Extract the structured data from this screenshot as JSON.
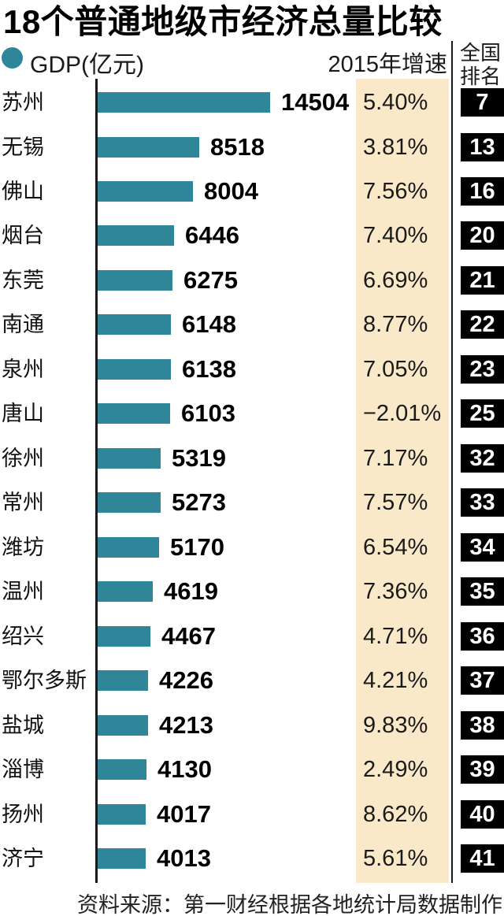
{
  "title": "18个普通地级市经济总量比较",
  "legend": {
    "gdp_label": "GDP(亿元)",
    "growth_header": "2015年增速",
    "rank_header_line1": "全国",
    "rank_header_line2": "排名"
  },
  "footer": {
    "source": "资料来源：第一财经根据各地统计局数据制作"
  },
  "colors": {
    "bar": "#2F8698",
    "highlight": "#FAE9C9",
    "badge_bg": "#000000",
    "badge_text": "#FFFFFF",
    "axis": "#1a1a1a"
  },
  "chart_data": {
    "type": "bar",
    "orientation": "horizontal",
    "title": "18个普通地级市经济总量比较",
    "value_label": "GDP(亿元)",
    "growth_label": "2015年增速",
    "rank_label": "全国排名",
    "xlim": [
      0,
      14504
    ],
    "grid": false,
    "rows": [
      {
        "city": "苏州",
        "gdp": 14504,
        "growth_pct": 5.4,
        "growth_display": "5.40%",
        "rank": 7
      },
      {
        "city": "无锡",
        "gdp": 8518,
        "growth_pct": 3.81,
        "growth_display": "3.81%",
        "rank": 13
      },
      {
        "city": "佛山",
        "gdp": 8004,
        "growth_pct": 7.56,
        "growth_display": "7.56%",
        "rank": 16
      },
      {
        "city": "烟台",
        "gdp": 6446,
        "growth_pct": 7.4,
        "growth_display": "7.40%",
        "rank": 20
      },
      {
        "city": "东莞",
        "gdp": 6275,
        "growth_pct": 6.69,
        "growth_display": "6.69%",
        "rank": 21
      },
      {
        "city": "南通",
        "gdp": 6148,
        "growth_pct": 8.77,
        "growth_display": "8.77%",
        "rank": 22
      },
      {
        "city": "泉州",
        "gdp": 6138,
        "growth_pct": 7.05,
        "growth_display": "7.05%",
        "rank": 23
      },
      {
        "city": "唐山",
        "gdp": 6103,
        "growth_pct": -2.01,
        "growth_display": "−2.01%",
        "rank": 25
      },
      {
        "city": "徐州",
        "gdp": 5319,
        "growth_pct": 7.17,
        "growth_display": "7.17%",
        "rank": 32
      },
      {
        "city": "常州",
        "gdp": 5273,
        "growth_pct": 7.57,
        "growth_display": "7.57%",
        "rank": 33
      },
      {
        "city": "潍坊",
        "gdp": 5170,
        "growth_pct": 6.54,
        "growth_display": "6.54%",
        "rank": 34
      },
      {
        "city": "温州",
        "gdp": 4619,
        "growth_pct": 7.36,
        "growth_display": "7.36%",
        "rank": 35
      },
      {
        "city": "绍兴",
        "gdp": 4467,
        "growth_pct": 4.71,
        "growth_display": "4.71%",
        "rank": 36
      },
      {
        "city": "鄂尔多斯",
        "gdp": 4226,
        "growth_pct": 4.21,
        "growth_display": "4.21%",
        "rank": 37
      },
      {
        "city": "盐城",
        "gdp": 4213,
        "growth_pct": 9.83,
        "growth_display": "9.83%",
        "rank": 38
      },
      {
        "city": "淄博",
        "gdp": 4130,
        "growth_pct": 2.49,
        "growth_display": "2.49%",
        "rank": 39
      },
      {
        "city": "扬州",
        "gdp": 4017,
        "growth_pct": 8.62,
        "growth_display": "8.62%",
        "rank": 40
      },
      {
        "city": "济宁",
        "gdp": 4013,
        "growth_pct": 5.61,
        "growth_display": "5.61%",
        "rank": 41
      }
    ],
    "layout": {
      "row_top_start": 103,
      "row_pitch": 56.47,
      "bar_left": 124,
      "bar_max_width": 219,
      "value_gap": 14
    }
  }
}
